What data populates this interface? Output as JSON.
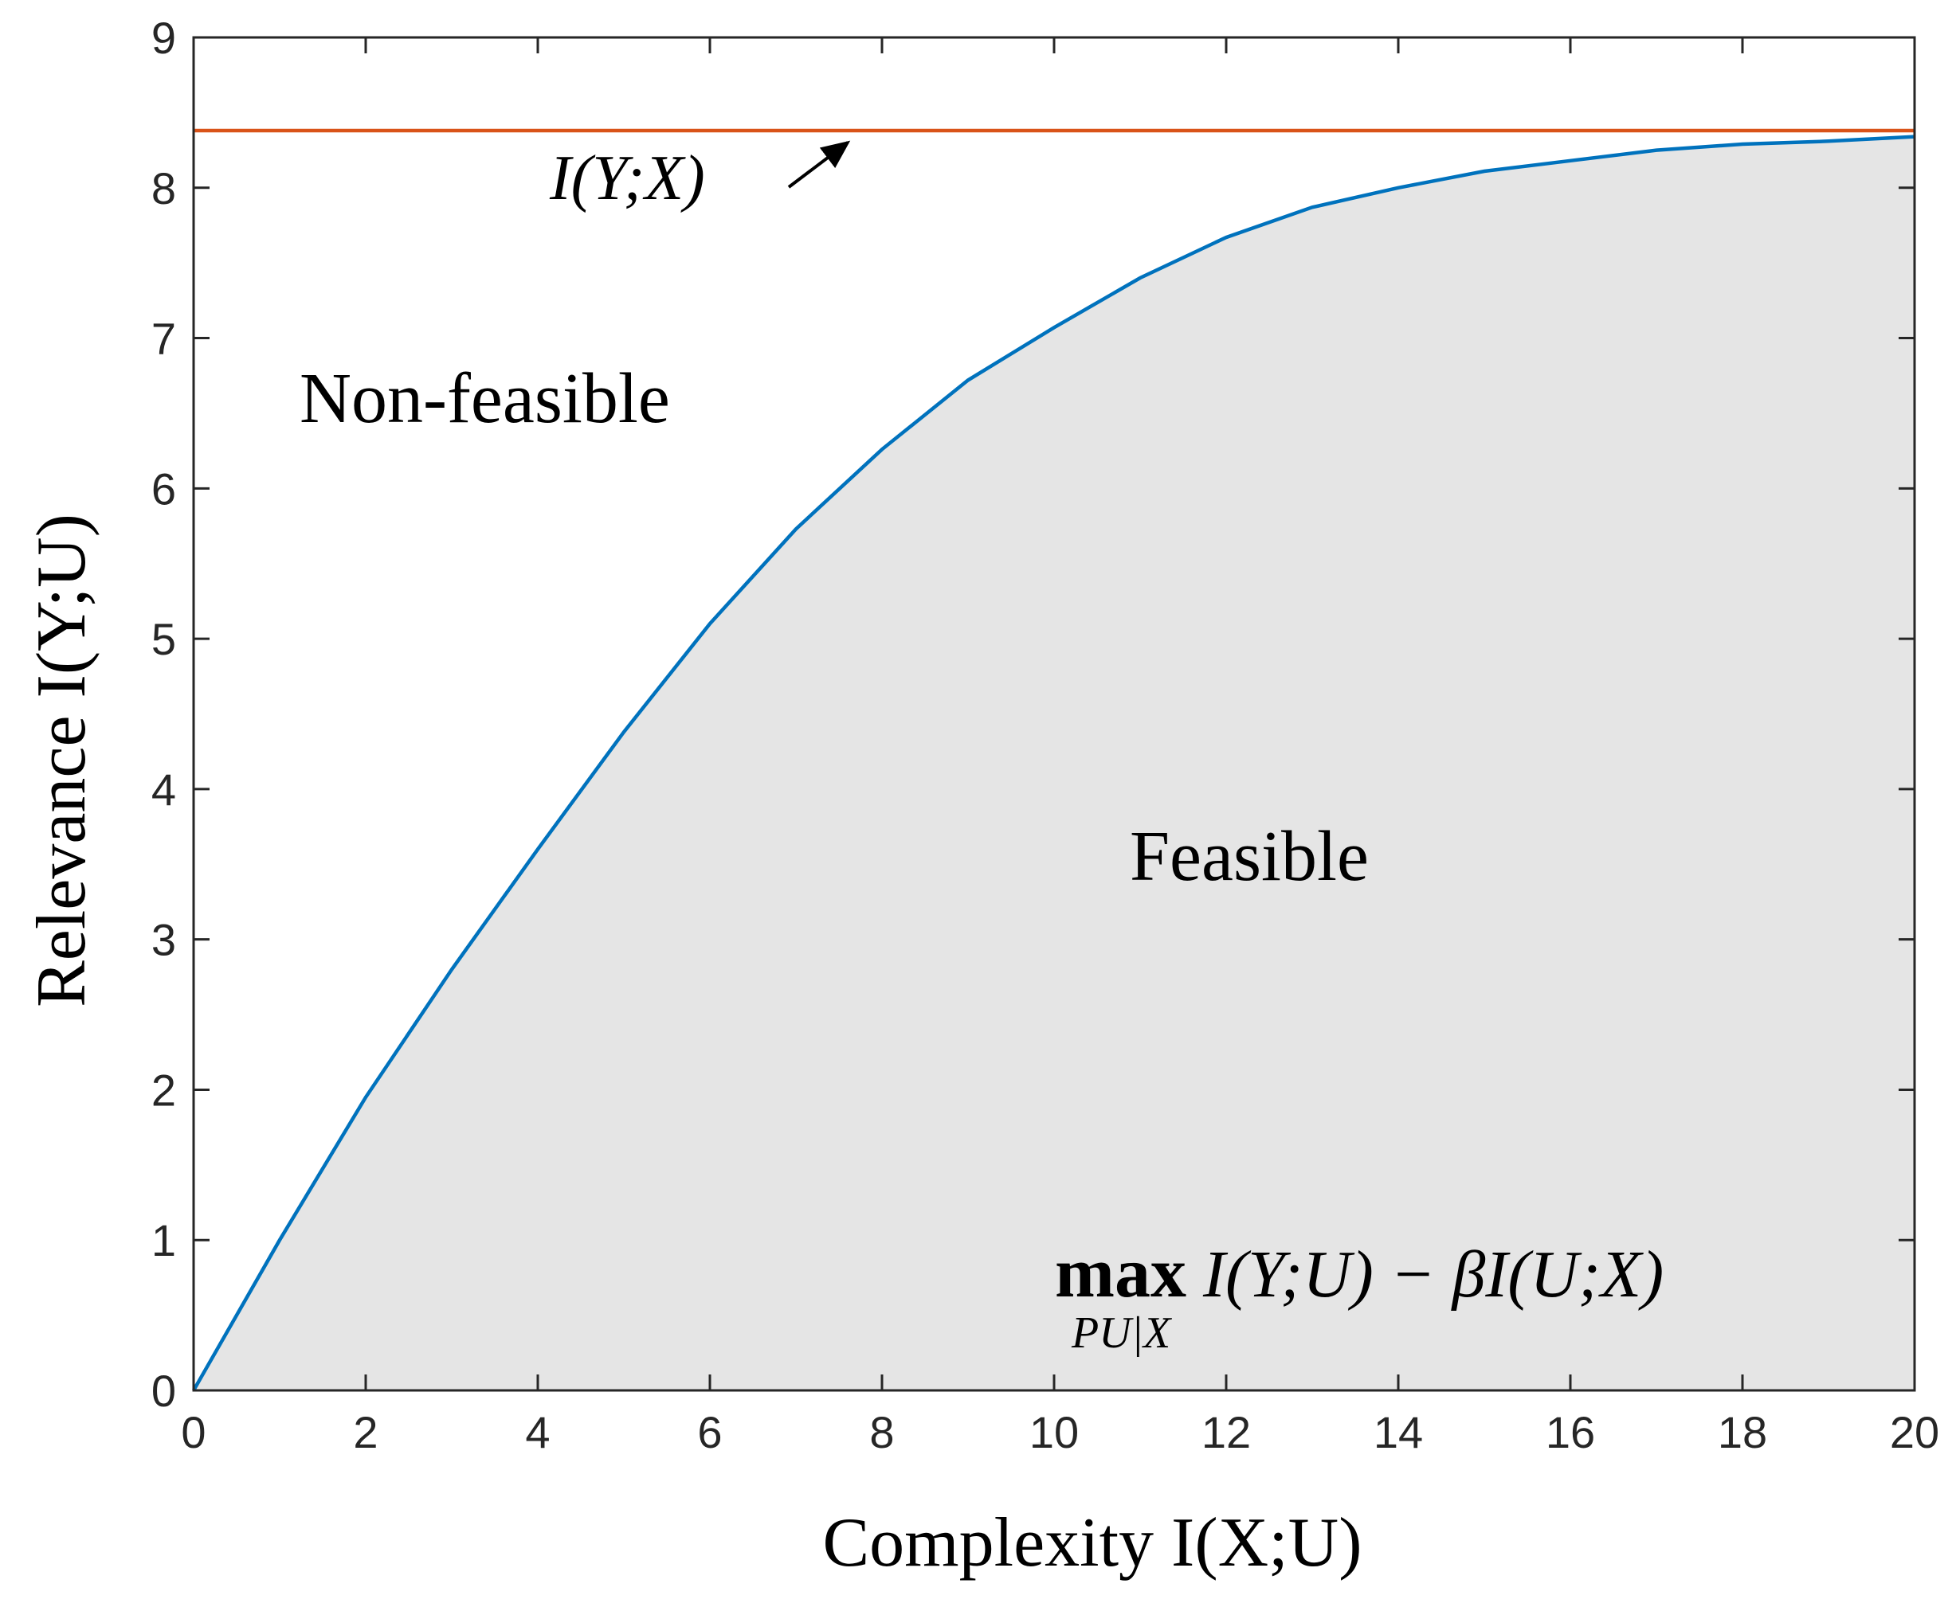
{
  "chart_data": {
    "type": "line",
    "xlabel": "Complexity I(X;U)",
    "ylabel": "Relevance I(Y;U)",
    "xlim": [
      0,
      20
    ],
    "ylim": [
      0,
      9
    ],
    "xticks": [
      0,
      2,
      4,
      6,
      8,
      10,
      12,
      14,
      16,
      18,
      20
    ],
    "yticks": [
      0,
      1,
      2,
      3,
      4,
      5,
      6,
      7,
      8,
      9
    ],
    "series": [
      {
        "color": "#0072bd",
        "fill": "#e5e5e5",
        "x": [
          0,
          1,
          2,
          3,
          4,
          5,
          6,
          7,
          8,
          9,
          10,
          11,
          12,
          13,
          14,
          15,
          16,
          17,
          18,
          19,
          20
        ],
        "values": [
          0,
          1.0,
          1.95,
          2.8,
          3.6,
          4.38,
          5.1,
          5.73,
          6.26,
          6.72,
          7.07,
          7.4,
          7.67,
          7.87,
          8.0,
          8.11,
          8.18,
          8.25,
          8.29,
          8.31,
          8.34
        ]
      },
      {
        "color": "#d95319",
        "x": [
          0,
          20
        ],
        "values": [
          8.38,
          8.38
        ]
      }
    ],
    "annotations": [
      "I(Y;X)",
      "Non-feasible",
      "Feasible"
    ],
    "objective": {
      "operator": "max",
      "subscript": "PU|X",
      "expression": "I(Y;U) − βI(U;X)"
    }
  }
}
